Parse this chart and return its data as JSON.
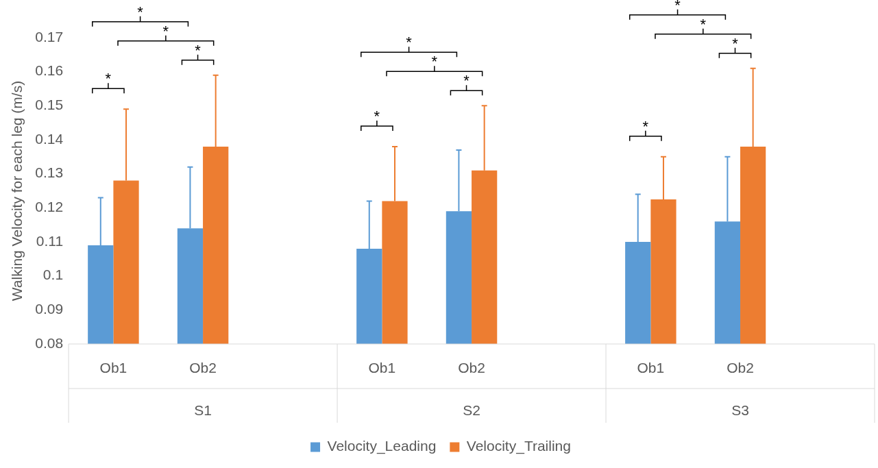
{
  "chart_data": {
    "type": "bar",
    "ylabel": "Walking Velocity for each leg (m/s)",
    "categories": [
      "Ob1",
      "Ob2",
      null,
      "Ob1",
      "Ob2",
      null,
      "Ob1",
      "Ob2",
      null
    ],
    "series": [
      {
        "name": "Velocity_Leading",
        "color": "#5b9bd5",
        "values": [
          0.109,
          0.114,
          null,
          0.108,
          0.119,
          null,
          0.11,
          0.116,
          null
        ],
        "errors": [
          [
            0.109,
            0.123
          ],
          [
            0.114,
            0.132
          ],
          null,
          [
            0.108,
            0.122
          ],
          [
            0.119,
            0.137
          ],
          null,
          [
            0.11,
            0.124
          ],
          [
            0.116,
            0.135
          ],
          null
        ]
      },
      {
        "name": "Velocity_Trailing",
        "color": "#ed7d31",
        "values": [
          0.128,
          0.138,
          null,
          0.122,
          0.131,
          null,
          0.1225,
          0.138,
          null
        ],
        "errors": [
          [
            0.128,
            0.149
          ],
          [
            0.138,
            0.159
          ],
          null,
          [
            0.122,
            0.138
          ],
          [
            0.131,
            0.15
          ],
          null,
          [
            0.1225,
            0.135
          ],
          [
            0.138,
            0.161
          ],
          null
        ]
      }
    ],
    "ylim": [
      0.08,
      0.17
    ],
    "yticks": [
      0.08,
      0.09,
      {
        "value": 0.1,
        "label": "0.1"
      },
      0.11,
      0.12,
      0.13,
      0.14,
      0.15,
      0.16,
      0.17
    ],
    "grid": false,
    "legend": "bottom",
    "annotations": [
      "S1",
      "S2",
      "S3",
      "*",
      "*",
      "*",
      "*",
      "*",
      "*",
      "*",
      "*",
      "*",
      "*",
      "*",
      "*"
    ]
  }
}
